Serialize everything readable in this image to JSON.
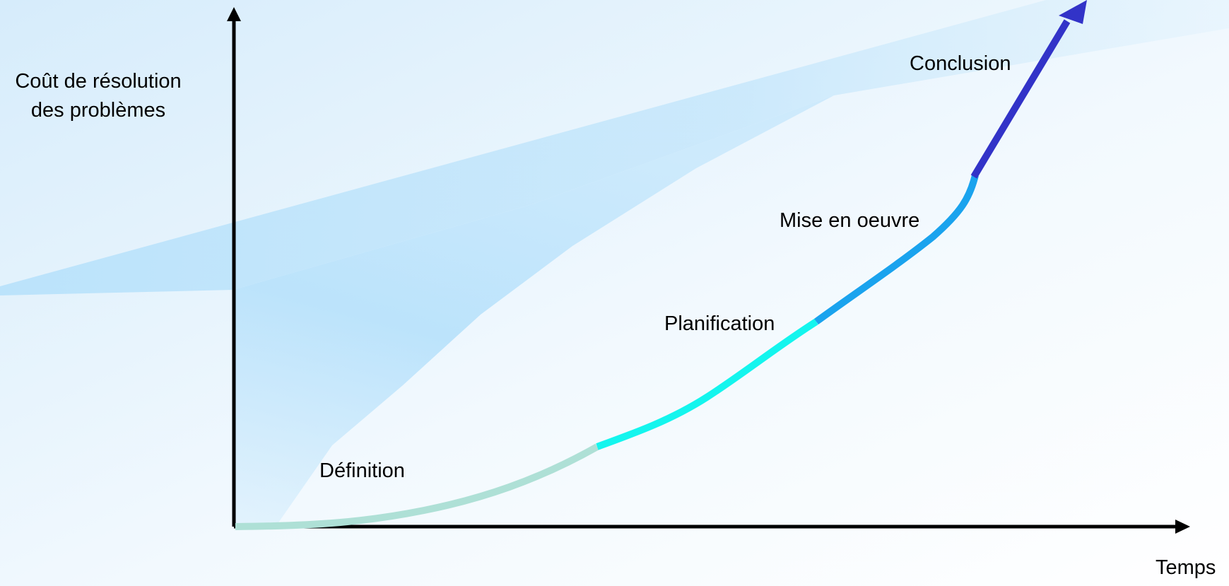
{
  "diagram": {
    "y_axis_label_lines": [
      "Coût de résolution",
      "des problèmes"
    ],
    "x_axis_label": "Temps",
    "phases": [
      {
        "label": "Définition",
        "color": "#aee0d6"
      },
      {
        "label": "Planification",
        "color": "#14f5ee"
      },
      {
        "label": "Mise en oeuvre",
        "color": "#1aa3ee"
      },
      {
        "label": "Conclusion",
        "color": "#3233c8"
      }
    ],
    "axis_color": "#000000",
    "background_band_color": "#b9e2fb"
  }
}
